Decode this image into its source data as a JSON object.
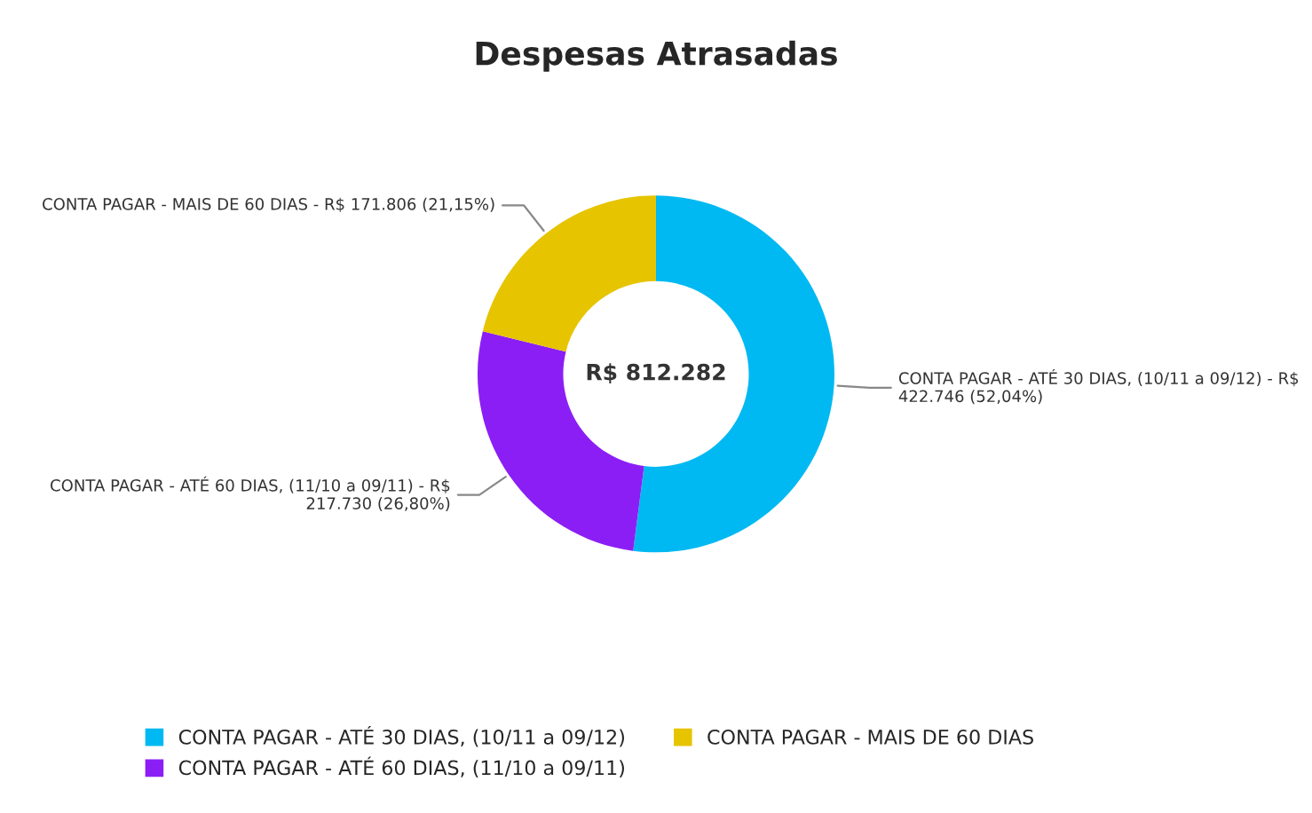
{
  "chart_data": {
    "type": "donut",
    "title": "Despesas Atrasadas",
    "categories": [
      "CONTA PAGAR - ATÉ 30 DIAS, (10/11 a 09/12)",
      "CONTA PAGAR - ATÉ 60 DIAS, (11/10 a 09/11)",
      "CONTA PAGAR - MAIS DE 60 DIAS"
    ],
    "values": [
      422746,
      217730,
      171806
    ],
    "colors": [
      "#00b9f2",
      "#8b1ef5",
      "#e6c400"
    ],
    "value_labels": [
      "CONTA PAGAR - ATÉ 30 DIAS, (10/11 a 09/12) - R$ 422.746 (52,04%)",
      "CONTA PAGAR - ATÉ 60 DIAS, (11/10 a 09/11) - R$ 217.730 (26,80%)",
      "CONTA PAGAR - MAIS DE 60 DIAS - R$ 171.806 (21,15%)"
    ],
    "annotations": [
      "R$ 812.282"
    ],
    "legend": "bottom"
  }
}
